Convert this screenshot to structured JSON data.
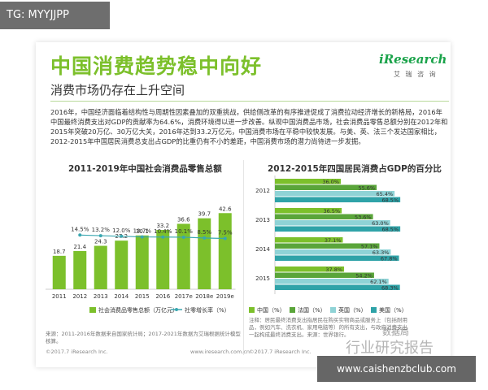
{
  "tag": "TG: MYYJJPP",
  "title": "中国消费趋势稳中向好",
  "subtitle": "消费市场仍存在上升空间",
  "logo": {
    "main": "iResearch",
    "sub": "艾 瑞 咨 询"
  },
  "paragraph": "2016年，中国经济面临着结构性与周期性因素叠加的双重挑战，供给侧改革的有序推进促成了消费拉动经济增长的新格局，2016年中国最终消费支出对GDP的贡献率为64.6%，消费环境得以进一步改善。纵观中国消费品市场，社会消费品零售总额分别在2012年和2015年突破20万亿、30万亿大关，2016年达到33.2万亿元，中国消费市场在平稳中较快发展。与美、英、法三个发达国家相比，2012-2015年中国居民消费总支出占GDP的比重仍有不小的差距，中国消费市场的潜力尚待进一步发掘。",
  "chart_left": {
    "title": "2011-2019年中国社会消费品零售总额",
    "legend_bar": "社会消费品零售总额（万亿元）",
    "legend_line": "社零增长率（%）",
    "note": "来源：2011-2016年数据来自国家统计局；2017-2021年数据为艾瑞根据统计模型核算。",
    "copyright": "©2017.7 iResearch Inc.",
    "site": "www.iresearch.com.cn"
  },
  "chart_right": {
    "title": "2012-2015年四国居民消费占GDP的百分比",
    "note": "注释：居民最终消费支出指居民在购买实物商品或服务上（包括耐用品，例如汽车、洗衣机、家用电脑等）的所有支出，与政府消费支出一起构成最终消费支出。来源：世界银行。",
    "copyright": "©2017.7 iResearch Inc."
  },
  "watermark": {
    "small": "数据局",
    "big": "行业研究报告"
  },
  "banner": "www.caishenzbclub.com",
  "chart_data": [
    {
      "type": "bar",
      "categories": [
        "2011",
        "2012",
        "2013",
        "2014",
        "2015",
        "2016",
        "2017e",
        "2018e",
        "2019e"
      ],
      "series": [
        {
          "name": "社会消费品零售总额（万亿元）",
          "type": "bar",
          "values": [
            18.7,
            21.4,
            24.3,
            27.2,
            30.1,
            33.2,
            36.6,
            39.7,
            42.6
          ],
          "color": "#7cc02b"
        },
        {
          "name": "社零增长率（%）",
          "type": "line",
          "values": [
            null,
            14.5,
            13.2,
            12.0,
            10.7,
            10.4,
            10.1,
            8.5,
            7.5
          ],
          "labels": [
            "",
            "14.5%",
            "13.2%",
            "12.0%",
            "10.7%",
            "10.4%",
            "10.1%",
            "8.5%",
            "7.5%"
          ],
          "color": "#3aa7b0"
        }
      ],
      "ylim": [
        0,
        50
      ]
    },
    {
      "type": "bar",
      "orientation": "horizontal",
      "categories": [
        "2012",
        "2013",
        "2014",
        "2015"
      ],
      "series": [
        {
          "name": "中国（%）",
          "values": [
            36.0,
            36.5,
            37.1,
            37.8
          ],
          "color": "#7cc02b"
        },
        {
          "name": "法国（%）",
          "values": [
            55.6,
            53.6,
            57.1,
            54.2
          ],
          "color": "#5aa53a"
        },
        {
          "name": "英国（%）",
          "values": [
            65.4,
            63.0,
            63.3,
            62.1
          ],
          "color": "#8fd3d6"
        },
        {
          "name": "美国（%）",
          "values": [
            68.5,
            68.5,
            67.8,
            68.3
          ],
          "color": "#2fa3a8"
        }
      ],
      "xlim": [
        0,
        80
      ]
    }
  ]
}
